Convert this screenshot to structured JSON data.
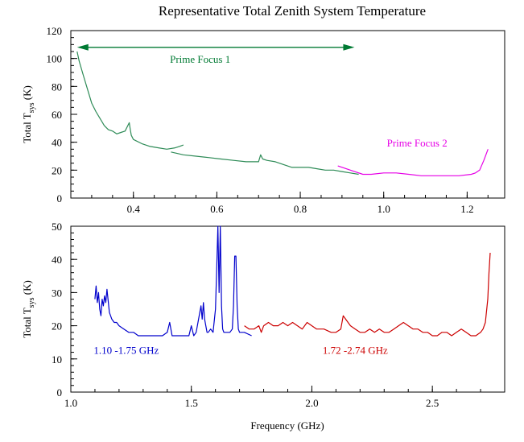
{
  "chart_data": [
    {
      "type": "line",
      "title": "Representative Total Zenith System Temperature",
      "xlabel": "",
      "ylabel": {
        "main": "Total T",
        "sub": "sys",
        "unit": " (K)"
      },
      "xlim": [
        0.25,
        1.29
      ],
      "ylim": [
        0,
        120
      ],
      "xticks": [
        0.4,
        0.6,
        0.8,
        1.0,
        1.2
      ],
      "xtick_labels": [
        "0.4",
        "0.6",
        "0.8",
        "1.0",
        "1.2"
      ],
      "yticks": [
        0,
        20,
        40,
        60,
        80,
        100,
        120
      ],
      "ytick_labels": [
        "0",
        "20",
        "40",
        "60",
        "80",
        "100",
        "120"
      ],
      "grid": false,
      "annotations": [
        {
          "text": "Prime Focus 1",
          "x": 0.56,
          "y": 97,
          "color": "#007a33"
        },
        {
          "text": "Prime Focus 2",
          "x": 1.08,
          "y": 37,
          "color": "#e600e6"
        }
      ],
      "range_arrow": {
        "from": 0.265,
        "to": 0.93,
        "y": 108,
        "color": "#007a33"
      },
      "series": [
        {
          "color": "#2e8b57",
          "x": [
            0.265,
            0.27,
            0.28,
            0.29,
            0.3,
            0.31,
            0.32,
            0.33,
            0.34,
            0.35,
            0.36,
            0.37,
            0.38,
            0.39,
            0.392,
            0.395,
            0.4,
            0.42,
            0.44,
            0.46,
            0.48,
            0.5,
            0.51,
            0.52
          ],
          "y": [
            105,
            98,
            88,
            78,
            68,
            62,
            57,
            52,
            49,
            48,
            46,
            47,
            48,
            54,
            50,
            45,
            42,
            39,
            37,
            36,
            35,
            36,
            37,
            38
          ]
        },
        {
          "color": "#2e8b57",
          "x": [
            0.49,
            0.52,
            0.55,
            0.58,
            0.61,
            0.64,
            0.67,
            0.7,
            0.705,
            0.71,
            0.72,
            0.74,
            0.76,
            0.78,
            0.8,
            0.82,
            0.84,
            0.86,
            0.88,
            0.9,
            0.92,
            0.94
          ],
          "y": [
            33,
            31,
            30,
            29,
            28,
            27,
            26,
            26,
            31,
            28,
            27,
            26,
            24,
            22,
            22,
            22,
            21,
            20,
            20,
            19,
            18,
            17
          ]
        },
        {
          "color": "#e600e6",
          "x": [
            0.89,
            0.91,
            0.93,
            0.95,
            0.97,
            1.0,
            1.03,
            1.06,
            1.09,
            1.12,
            1.15,
            1.18,
            1.21,
            1.22,
            1.23,
            1.24,
            1.25
          ],
          "y": [
            23,
            21,
            19,
            17,
            17,
            18,
            18,
            17,
            16,
            16,
            16,
            16,
            17,
            18,
            20,
            27,
            35
          ]
        }
      ]
    },
    {
      "type": "line",
      "title": "",
      "xlabel": "Frequency (GHz)",
      "ylabel": {
        "main": "Total T",
        "sub": "sys",
        "unit": " (K)"
      },
      "xlim": [
        1.0,
        2.8
      ],
      "ylim": [
        0,
        50
      ],
      "xticks": [
        1.0,
        1.5,
        2.0,
        2.5
      ],
      "xtick_labels": [
        "1.0",
        "1.5",
        "2.0",
        "2.5"
      ],
      "yticks": [
        0,
        10,
        20,
        30,
        40,
        50
      ],
      "ytick_labels": [
        "0",
        "10",
        "20",
        "30",
        "40",
        "50"
      ],
      "grid": false,
      "annotations": [
        {
          "text": "1.10 -1.75 GHz",
          "x": 1.23,
          "y": 11.5,
          "color": "#0000cc"
        },
        {
          "text": "1.72 -2.74 GHz",
          "x": 2.18,
          "y": 11.5,
          "color": "#cc0000"
        }
      ],
      "series": [
        {
          "color": "#0000cc",
          "x": [
            1.1,
            1.105,
            1.11,
            1.115,
            1.12,
            1.125,
            1.13,
            1.135,
            1.14,
            1.145,
            1.15,
            1.16,
            1.17,
            1.18,
            1.19,
            1.2,
            1.22,
            1.24,
            1.26,
            1.28,
            1.3,
            1.32,
            1.35,
            1.38,
            1.4,
            1.41,
            1.42,
            1.43,
            1.45,
            1.47,
            1.49,
            1.5,
            1.51,
            1.52,
            1.53,
            1.54,
            1.545,
            1.55,
            1.555,
            1.56,
            1.565,
            1.57,
            1.58,
            1.59,
            1.6,
            1.605,
            1.61,
            1.615,
            1.62,
            1.625,
            1.63,
            1.635,
            1.64,
            1.65,
            1.66,
            1.67,
            1.675,
            1.68,
            1.685,
            1.69,
            1.695,
            1.7,
            1.72,
            1.75
          ],
          "y": [
            28,
            32,
            27,
            30,
            25,
            23,
            28,
            26,
            29,
            27,
            31,
            24,
            22,
            21,
            21,
            20,
            19,
            18,
            18,
            17,
            17,
            17,
            17,
            17,
            18,
            21,
            17,
            17,
            17,
            17,
            17,
            20,
            17,
            18,
            22,
            26,
            22,
            27,
            22,
            20,
            18,
            18,
            19,
            18,
            25,
            37,
            51,
            30,
            51,
            26,
            19,
            18,
            18,
            18,
            18,
            19,
            26,
            41,
            41,
            26,
            19,
            18,
            18,
            17
          ]
        },
        {
          "color": "#cc0000",
          "x": [
            1.72,
            1.74,
            1.76,
            1.78,
            1.79,
            1.8,
            1.82,
            1.84,
            1.86,
            1.88,
            1.9,
            1.92,
            1.94,
            1.96,
            1.98,
            2.0,
            2.02,
            2.05,
            2.08,
            2.1,
            2.12,
            2.13,
            2.14,
            2.16,
            2.18,
            2.2,
            2.22,
            2.24,
            2.26,
            2.28,
            2.3,
            2.32,
            2.34,
            2.36,
            2.38,
            2.4,
            2.42,
            2.44,
            2.46,
            2.48,
            2.5,
            2.52,
            2.54,
            2.56,
            2.58,
            2.6,
            2.62,
            2.64,
            2.66,
            2.68,
            2.7,
            2.71,
            2.72,
            2.73,
            2.735,
            2.74
          ],
          "y": [
            20,
            19,
            19,
            20,
            18,
            20,
            21,
            20,
            20,
            21,
            20,
            21,
            20,
            19,
            21,
            20,
            19,
            19,
            18,
            18,
            19,
            23,
            22,
            20,
            19,
            18,
            18,
            19,
            18,
            19,
            18,
            18,
            19,
            20,
            21,
            20,
            19,
            19,
            18,
            18,
            17,
            17,
            18,
            18,
            17,
            18,
            19,
            18,
            17,
            17,
            18,
            19,
            21,
            28,
            36,
            42
          ]
        }
      ]
    }
  ]
}
